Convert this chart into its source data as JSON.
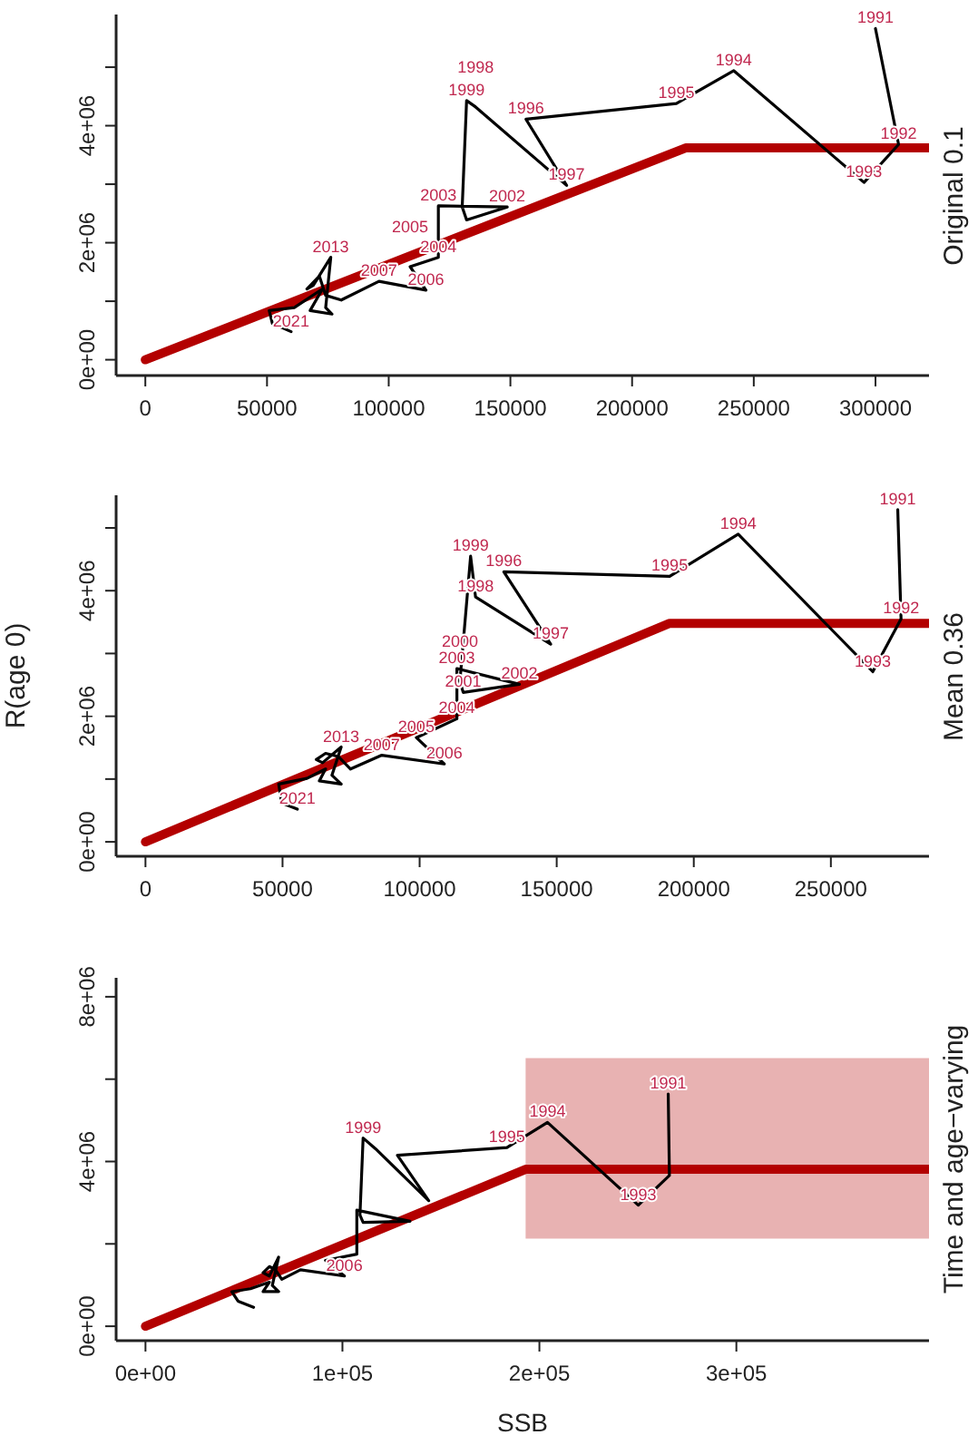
{
  "chart_data": [
    {
      "type": "line",
      "title": "Original 0.1",
      "marker": "none",
      "xlim": [
        -12000,
        322000
      ],
      "ylim": [
        -270000,
        5900000
      ],
      "xticks": [
        0,
        50000,
        100000,
        150000,
        200000,
        250000,
        300000
      ],
      "yticks": [
        {
          "value": 0,
          "label": "0e+00"
        },
        {
          "value": 1000000,
          "label": null
        },
        {
          "value": 2000000,
          "label": "2e+06"
        },
        {
          "value": 3000000,
          "label": null
        },
        {
          "value": 4000000,
          "label": "4e+06"
        },
        {
          "value": 5000000,
          "label": null
        }
      ],
      "series": [
        {
          "color": "#000000",
          "x": [
            300000,
            309500,
            295300,
            241800,
            218200,
            156400,
            173100,
            135700,
            132000,
            130200,
            132000,
            148700,
            120400,
            120400,
            108800,
            115300,
            96000,
            80500,
            74100,
            71500,
            66400,
            69000,
            76200,
            74100,
            76700,
            67700,
            72800,
            61200,
            50900,
            52200,
            59900
          ],
          "values": [
            5660000,
            3680000,
            3030000,
            4940000,
            4380000,
            4110000,
            2980000,
            4320000,
            4430000,
            2610000,
            2390000,
            2610000,
            2630000,
            1750000,
            1590000,
            1190000,
            1340000,
            1020000,
            1100000,
            1430000,
            1210000,
            1270000,
            1750000,
            890000,
            780000,
            840000,
            1210000,
            890000,
            840000,
            620000,
            480000
          ]
        },
        {
          "color": "#b30000",
          "x": [
            0,
            222000,
            322000
          ],
          "values": [
            0,
            3620000,
            3620000
          ]
        }
      ],
      "annotations": [
        {
          "text": "1991",
          "x": 300000,
          "y": 5660000
        },
        {
          "text": "1992",
          "x": 309500,
          "y": 3680000
        },
        {
          "text": "1993",
          "x": 295300,
          "y": 3030000
        },
        {
          "text": "1994",
          "x": 241800,
          "y": 4940000
        },
        {
          "text": "1995",
          "x": 218200,
          "y": 4380000
        },
        {
          "text": "1996",
          "x": 156400,
          "y": 4110000
        },
        {
          "text": "1997",
          "x": 173100,
          "y": 2980000
        },
        {
          "text": "1999",
          "x": 132000,
          "y": 4430000
        },
        {
          "text": "1998",
          "x": 135700,
          "y": 4320000
        },
        {
          "text": "2003",
          "x": 120400,
          "y": 2630000
        },
        {
          "text": "2002",
          "x": 148700,
          "y": 2610000
        },
        {
          "text": "2004",
          "x": 120400,
          "y": 1750000
        },
        {
          "text": "2005",
          "x": 108800,
          "y": 1590000
        },
        {
          "text": "2006",
          "x": 115300,
          "y": 1190000
        },
        {
          "text": "2007",
          "x": 96000,
          "y": 1340000
        },
        {
          "text": "2013",
          "x": 76200,
          "y": 1750000
        },
        {
          "text": "2021",
          "x": 59900,
          "y": 480000
        }
      ]
    },
    {
      "type": "line",
      "title": "Mean 0.36",
      "ylabel": "R(age 0)",
      "marker": "none",
      "xlim": [
        -10700,
        285800
      ],
      "ylim": [
        -230000,
        5520000
      ],
      "xticks": [
        0,
        50000,
        100000,
        150000,
        200000,
        250000
      ],
      "yticks": [
        {
          "value": 0,
          "label": "0e+00"
        },
        {
          "value": 1000000,
          "label": null
        },
        {
          "value": 2000000,
          "label": "2e+06"
        },
        {
          "value": 3000000,
          "label": null
        },
        {
          "value": 4000000,
          "label": "4e+06"
        },
        {
          "value": 5000000,
          "label": null
        }
      ],
      "series": [
        {
          "color": "#000000",
          "x": [
            274400,
            275600,
            265300,
            216200,
            191200,
            130700,
            147800,
            120400,
            118600,
            114700,
            115900,
            136400,
            113600,
            113600,
            98800,
            109000,
            86200,
            74800,
            70300,
            65700,
            62300,
            64600,
            71400,
            68000,
            71400,
            63400,
            65700,
            58900,
            48600,
            49700,
            55400
          ],
          "values": [
            5290000,
            3550000,
            2710000,
            4900000,
            4230000,
            4300000,
            3150000,
            3900000,
            4550000,
            2560000,
            2380000,
            2510000,
            2760000,
            1960000,
            1660000,
            1240000,
            1380000,
            1160000,
            1360000,
            1410000,
            1310000,
            1260000,
            1510000,
            1060000,
            920000,
            970000,
            1160000,
            1010000,
            920000,
            620000,
            520000
          ]
        },
        {
          "color": "#b30000",
          "x": [
            0,
            191200,
            285800
          ],
          "values": [
            0,
            3480000,
            3480000
          ]
        }
      ],
      "annotations": [
        {
          "text": "1991",
          "x": 274400,
          "y": 5290000
        },
        {
          "text": "1992",
          "x": 275600,
          "y": 3550000
        },
        {
          "text": "1993",
          "x": 265300,
          "y": 2710000
        },
        {
          "text": "1994",
          "x": 216200,
          "y": 4900000
        },
        {
          "text": "1995",
          "x": 191200,
          "y": 4230000
        },
        {
          "text": "1996",
          "x": 130700,
          "y": 4300000
        },
        {
          "text": "1997",
          "x": 147800,
          "y": 3150000
        },
        {
          "text": "1998",
          "x": 120400,
          "y": 3900000
        },
        {
          "text": "1999",
          "x": 118600,
          "y": 4550000
        },
        {
          "text": "2003",
          "x": 113600,
          "y": 2760000
        },
        {
          "text": "2000",
          "x": 114700,
          "y": 2560000
        },
        {
          "text": "2001",
          "x": 115900,
          "y": 2380000
        },
        {
          "text": "2002",
          "x": 136400,
          "y": 2510000
        },
        {
          "text": "2004",
          "x": 113600,
          "y": 1960000
        },
        {
          "text": "2005",
          "x": 98800,
          "y": 1660000
        },
        {
          "text": "2006",
          "x": 109000,
          "y": 1240000
        },
        {
          "text": "2007",
          "x": 86200,
          "y": 1380000
        },
        {
          "text": "2013",
          "x": 71400,
          "y": 1510000
        },
        {
          "text": "2021",
          "x": 55400,
          "y": 520000
        }
      ]
    },
    {
      "type": "line",
      "title": "Time and age−varying",
      "xlabel": "SSB",
      "marker": "none",
      "xlim": [
        -14900,
        397800
      ],
      "ylim": [
        -350000,
        8460000
      ],
      "xticks": [
        {
          "value": 0,
          "label": "0e+00"
        },
        {
          "value": 100000,
          "label": "1e+05"
        },
        {
          "value": 200000,
          "label": "2e+05"
        },
        {
          "value": 300000,
          "label": "3e+05"
        }
      ],
      "yticks": [
        {
          "value": 0,
          "label": "0e+00"
        },
        {
          "value": 2000000,
          "label": null
        },
        {
          "value": 4000000,
          "label": "4e+06"
        },
        {
          "value": 6000000,
          "label": null
        },
        {
          "value": 8000000,
          "label": "8e+06"
        }
      ],
      "series": [
        {
          "color": "#000000",
          "x": [
            265400,
            266000,
            250200,
            204100,
            183500,
            127900,
            143800,
            116800,
            110500,
            108900,
            110500,
            134300,
            107300,
            107300,
            91400,
            101000,
            78700,
            69200,
            66000,
            62900,
            59700,
            62900,
            67600,
            64400,
            67600,
            59700,
            62900,
            53300,
            43800,
            47000,
            54900
          ],
          "values": [
            5640000,
            3660000,
            2940000,
            4950000,
            4340000,
            4150000,
            3050000,
            4310000,
            4570000,
            2700000,
            2520000,
            2550000,
            2820000,
            1750000,
            1600000,
            1220000,
            1370000,
            1140000,
            1370000,
            1450000,
            1300000,
            1220000,
            1680000,
            990000,
            840000,
            840000,
            1070000,
            910000,
            840000,
            610000,
            460000
          ]
        },
        {
          "color": "#b30000",
          "x": [
            0,
            193000,
            397800
          ],
          "values": [
            0,
            3810000,
            3810000
          ],
          "lower": [
            null,
            2130000,
            2130000
          ],
          "upper": [
            null,
            6510000,
            6510000
          ]
        }
      ],
      "annotations": [
        {
          "text": "1991",
          "x": 265400,
          "y": 5640000
        },
        {
          "text": "1993",
          "x": 250200,
          "y": 2940000
        },
        {
          "text": "1994",
          "x": 204100,
          "y": 4950000
        },
        {
          "text": "1995",
          "x": 183500,
          "y": 4340000
        },
        {
          "text": "1999",
          "x": 110500,
          "y": 4570000
        },
        {
          "text": "2006",
          "x": 101000,
          "y": 1220000
        }
      ]
    }
  ]
}
